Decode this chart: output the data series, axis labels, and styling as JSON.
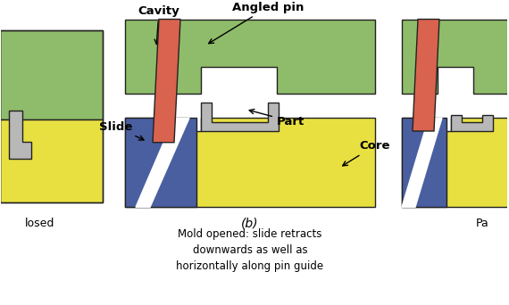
{
  "bg_color": "#ffffff",
  "colors": {
    "green": "#8fbc6a",
    "yellow": "#e8e040",
    "blue": "#4a5fa0",
    "red_pin": "#d9634e",
    "white": "#ffffff",
    "gray_part": "#b8b8b8",
    "dark_outline": "#222222"
  },
  "label_b": "(b)",
  "caption_line1": "Mold opened: slide retracts",
  "caption_line2": "downwards as well as",
  "caption_line3": "horizontally along pin guide",
  "label_closed": "losed",
  "label_pa": "Pa"
}
